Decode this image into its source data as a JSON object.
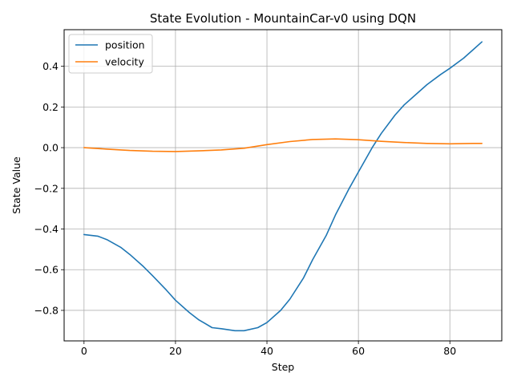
{
  "chart_data": {
    "type": "line",
    "title": "State Evolution - MountainCar-v0 using DQN",
    "xlabel": "Step",
    "ylabel": "State Value",
    "xlim": [
      -4.35,
      91.35
    ],
    "ylim": [
      -0.95,
      0.58
    ],
    "x_ticks": [
      0,
      20,
      40,
      60,
      80
    ],
    "x_tick_labels": [
      "0",
      "20",
      "40",
      "60",
      "80"
    ],
    "y_ticks": [
      -0.8,
      -0.6,
      -0.4,
      -0.2,
      0.0,
      0.2,
      0.4
    ],
    "y_tick_labels": [
      "−0.8",
      "−0.6",
      "−0.4",
      "−0.2",
      "0.0",
      "0.2",
      "0.4"
    ],
    "grid": true,
    "legend_position": "top-left",
    "series": [
      {
        "name": "position",
        "color": "#1f77b4",
        "x": [
          0,
          3,
          5,
          8,
          10,
          13,
          15,
          18,
          20,
          23,
          25,
          28,
          30,
          33,
          35,
          38,
          40,
          43,
          45,
          48,
          50,
          53,
          55,
          58,
          60,
          63,
          65,
          68,
          70,
          73,
          75,
          78,
          80,
          83,
          85,
          87
        ],
        "y": [
          -0.427,
          -0.435,
          -0.452,
          -0.49,
          -0.525,
          -0.585,
          -0.63,
          -0.7,
          -0.75,
          -0.81,
          -0.845,
          -0.885,
          -0.89,
          -0.9,
          -0.9,
          -0.885,
          -0.86,
          -0.8,
          -0.745,
          -0.64,
          -0.55,
          -0.43,
          -0.33,
          -0.2,
          -0.12,
          0.0,
          0.07,
          0.16,
          0.21,
          0.27,
          0.31,
          0.36,
          0.39,
          0.44,
          0.48,
          0.52
        ]
      },
      {
        "name": "velocity",
        "color": "#ff7f0e",
        "x": [
          0,
          5,
          10,
          15,
          20,
          25,
          30,
          35,
          40,
          45,
          50,
          55,
          60,
          65,
          70,
          75,
          80,
          85,
          87
        ],
        "y": [
          0.0,
          -0.007,
          -0.014,
          -0.018,
          -0.019,
          -0.016,
          -0.011,
          -0.003,
          0.015,
          0.03,
          0.04,
          0.043,
          0.039,
          0.031,
          0.025,
          0.021,
          0.019,
          0.021,
          0.021
        ]
      }
    ]
  }
}
